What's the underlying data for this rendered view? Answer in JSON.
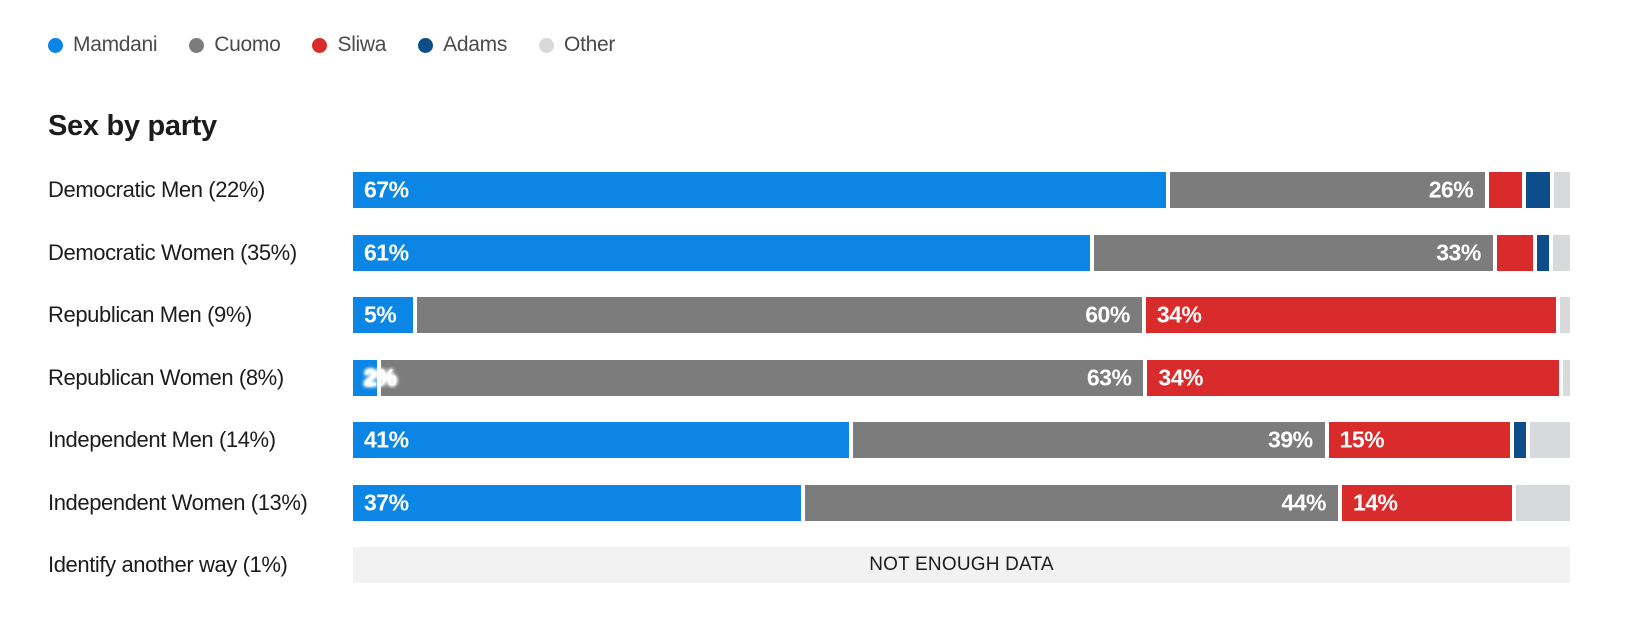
{
  "title": "Sex by party",
  "colors": {
    "Mamdani": "#0c86e4",
    "Cuomo": "#7c7c7c",
    "Sliwa": "#da2b2c",
    "Adams": "#0e4d8c",
    "Other": "#d8d9da",
    "no_data_track": "#f2f2f3"
  },
  "legend": {
    "items": [
      {
        "label": "Mamdani",
        "color": "#0c86e4"
      },
      {
        "label": "Cuomo",
        "color": "#7c7c7c"
      },
      {
        "label": "Sliwa",
        "color": "#da2b2c"
      },
      {
        "label": "Adams",
        "color": "#0e4d8c"
      },
      {
        "label": "Other",
        "color": "#d8d9da"
      }
    ]
  },
  "rows": [
    {
      "label": "Democratic Men (22%)",
      "segments": [
        {
          "candidate": "Mamdani",
          "value": 67,
          "label": "67%",
          "align": "left"
        },
        {
          "candidate": "Cuomo",
          "value": 26,
          "label": "26%",
          "align": "right"
        },
        {
          "candidate": "Sliwa",
          "value": 2.7
        },
        {
          "candidate": "Adams",
          "value": 2
        },
        {
          "candidate": "Other",
          "value": 1.3
        }
      ]
    },
    {
      "label": "Democratic Women (35%)",
      "segments": [
        {
          "candidate": "Mamdani",
          "value": 61,
          "label": "61%",
          "align": "left"
        },
        {
          "candidate": "Cuomo",
          "value": 33,
          "label": "33%",
          "align": "right"
        },
        {
          "candidate": "Sliwa",
          "value": 3
        },
        {
          "candidate": "Adams",
          "value": 1
        },
        {
          "candidate": "Other",
          "value": 1.4
        }
      ]
    },
    {
      "label": "Republican Men (9%)",
      "segments": [
        {
          "candidate": "Mamdani",
          "value": 5,
          "label": "5%",
          "align": "left"
        },
        {
          "candidate": "Cuomo",
          "value": 60,
          "label": "60%",
          "align": "right"
        },
        {
          "candidate": "Sliwa",
          "value": 34,
          "label": "34%",
          "align": "left"
        },
        {
          "candidate": "Other",
          "value": 0.8
        }
      ]
    },
    {
      "label": "Republican Women (8%)",
      "segments": [
        {
          "candidate": "Mamdani",
          "value": 2,
          "label": "2%",
          "align": "left",
          "halo": true
        },
        {
          "candidate": "Cuomo",
          "value": 63,
          "label": "63%",
          "align": "right"
        },
        {
          "candidate": "Sliwa",
          "value": 34,
          "label": "34%",
          "align": "left"
        },
        {
          "candidate": "Other",
          "value": 0.6
        }
      ]
    },
    {
      "label": "Independent Men (14%)",
      "segments": [
        {
          "candidate": "Mamdani",
          "value": 41,
          "label": "41%",
          "align": "left"
        },
        {
          "candidate": "Cuomo",
          "value": 39,
          "label": "39%",
          "align": "right"
        },
        {
          "candidate": "Sliwa",
          "value": 15,
          "label": "15%",
          "align": "left"
        },
        {
          "candidate": "Adams",
          "value": 1
        },
        {
          "candidate": "Other",
          "value": 3.3
        }
      ]
    },
    {
      "label": "Independent Women (13%)",
      "segments": [
        {
          "candidate": "Mamdani",
          "value": 37,
          "label": "37%",
          "align": "left"
        },
        {
          "candidate": "Cuomo",
          "value": 44,
          "label": "44%",
          "align": "right"
        },
        {
          "candidate": "Sliwa",
          "value": 14,
          "label": "14%",
          "align": "left"
        },
        {
          "candidate": "Other",
          "value": 4.5
        }
      ]
    },
    {
      "label": "Identify another way (1%)",
      "no_data": true,
      "no_data_text": "NOT ENOUGH DATA"
    }
  ],
  "chart_data": {
    "type": "bar",
    "stacked": true,
    "orientation": "horizontal",
    "title": "Sex by party",
    "legend_position": "top",
    "xlim": [
      0,
      100
    ],
    "grid": false,
    "categories": [
      "Democratic Men (22%)",
      "Democratic Women (35%)",
      "Republican Men (9%)",
      "Republican Women (8%)",
      "Independent Men (14%)",
      "Independent Women (13%)",
      "Identify another way (1%)"
    ],
    "series": [
      {
        "name": "Mamdani",
        "values": [
          67,
          61,
          5,
          2,
          41,
          37,
          null
        ]
      },
      {
        "name": "Cuomo",
        "values": [
          26,
          33,
          60,
          63,
          39,
          44,
          null
        ]
      },
      {
        "name": "Sliwa",
        "values": [
          2.7,
          3,
          34,
          34,
          15,
          14,
          null
        ]
      },
      {
        "name": "Adams",
        "values": [
          2,
          1,
          0,
          0,
          1,
          0,
          null
        ]
      },
      {
        "name": "Other",
        "values": [
          1.3,
          1.4,
          0.8,
          0.6,
          3.3,
          4.5,
          null
        ]
      }
    ],
    "annotations": [
      "NOT ENOUGH DATA"
    ]
  }
}
